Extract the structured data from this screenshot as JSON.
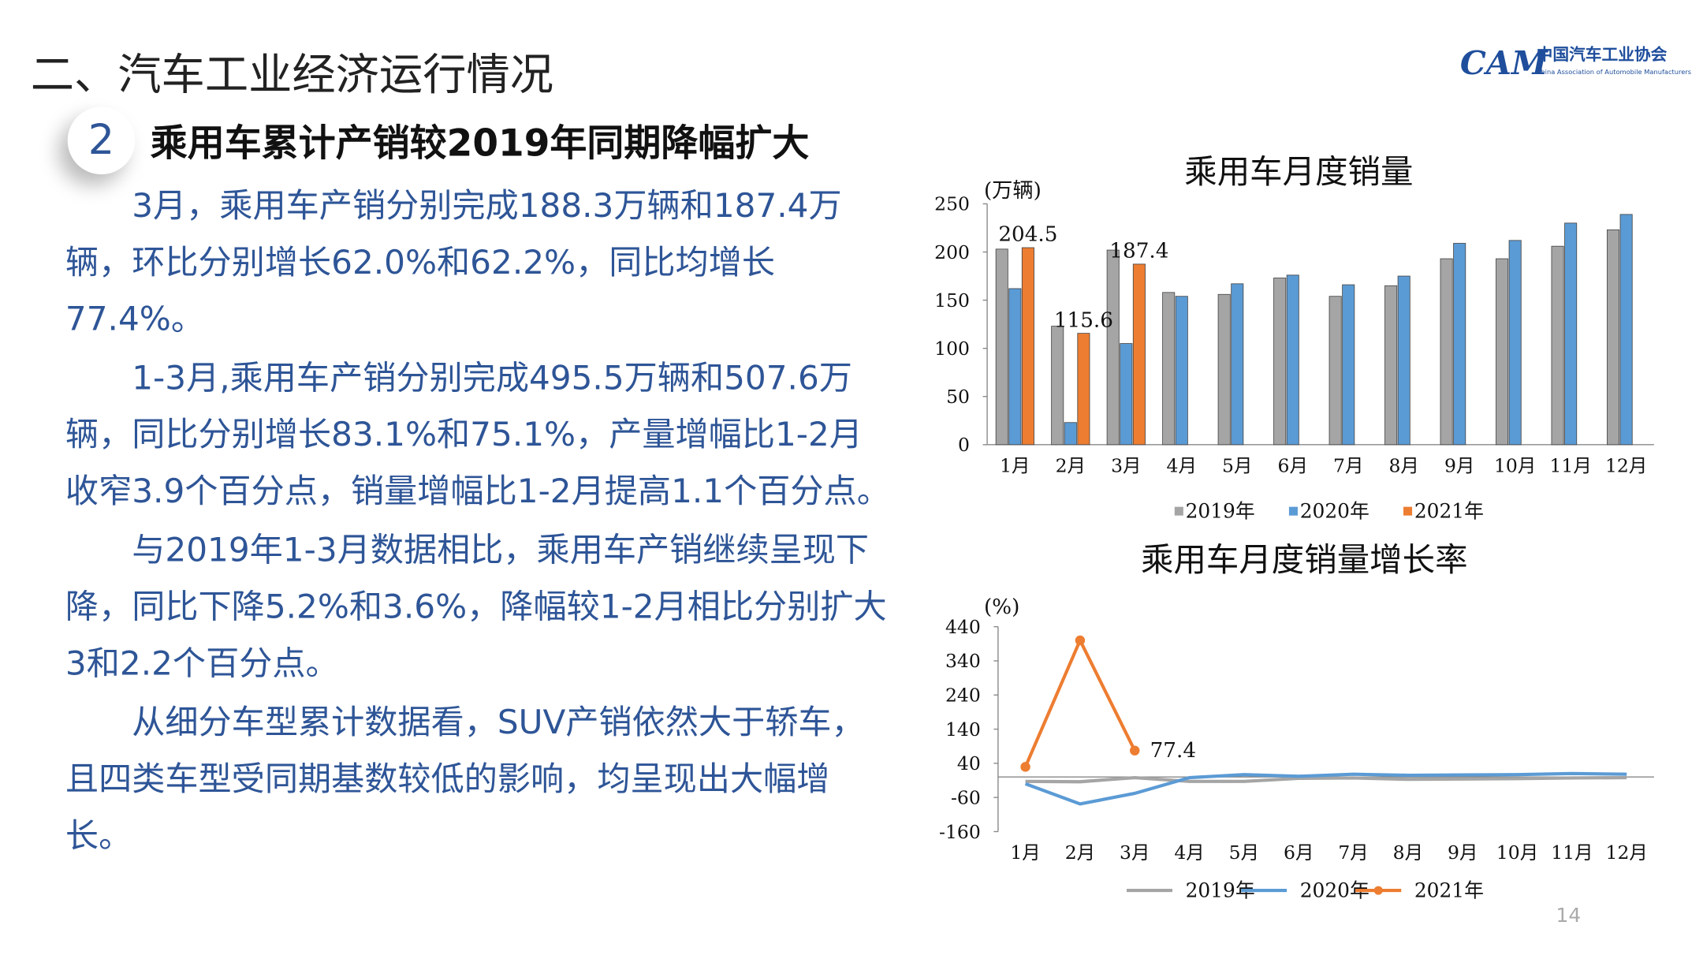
{
  "header": {
    "title": "二、汽车工业经济运行情况",
    "logo_cn": "中国汽车工业协会",
    "logo_en": "China Association of Automobile Manufacturers",
    "logo_mark": "CAM"
  },
  "section": {
    "number": "2",
    "title": "乘用车累计产销较2019年同期降幅扩大"
  },
  "paragraphs": [
    "3月，乘用车产销分别完成188.3万辆和187.4万辆，环比分别增长62.0%和62.2%，同比均增长77.4%。",
    "1-3月,乘用车产销分别完成495.5万辆和507.6万辆，同比分别增长83.1%和75.1%，产量增幅比1-2月收窄3.9个百分点，销量增幅比1-2月提高1.1个百分点。",
    "与2019年1-3月数据相比，乘用车产销继续呈现下降，同比下降5.2%和3.6%，降幅较1-2月相比分别扩大3和2.2个百分点。",
    "从细分车型累计数据看，SUV产销依然大于轿车，且四类车型受同期基数较低的影响，均呈现出大幅增长。"
  ],
  "page_number": "14",
  "chart_data": [
    {
      "type": "bar",
      "title": "乘用车月度销量",
      "y_label": "(万辆)",
      "categories": [
        "1月",
        "2月",
        "3月",
        "4月",
        "5月",
        "6月",
        "7月",
        "8月",
        "9月",
        "10月",
        "11月",
        "12月"
      ],
      "series": [
        {
          "name": "2019年",
          "color": "#a5a5a5",
          "values": [
            203,
            123,
            202,
            158,
            156,
            173,
            154,
            165,
            193,
            193,
            206,
            223
          ]
        },
        {
          "name": "2020年",
          "color": "#5b9bd5",
          "values": [
            162,
            23,
            105,
            154,
            167,
            176,
            166,
            175,
            209,
            212,
            230,
            239
          ]
        },
        {
          "name": "2021年",
          "color": "#ed7d31",
          "values": [
            204.5,
            115.6,
            187.4,
            null,
            null,
            null,
            null,
            null,
            null,
            null,
            null,
            null
          ],
          "data_labels": true
        }
      ],
      "ylim": [
        0,
        250
      ],
      "yticks": [
        0,
        50,
        100,
        150,
        200,
        250
      ],
      "legend": "bottom"
    },
    {
      "type": "line",
      "title": "乘用车月度销量增长率",
      "y_label": "(%)",
      "categories": [
        "1月",
        "2月",
        "3月",
        "4月",
        "5月",
        "6月",
        "7月",
        "8月",
        "9月",
        "10月",
        "11月",
        "12月"
      ],
      "series": [
        {
          "name": "2019年",
          "color": "#a5a5a5",
          "values": [
            -13,
            -14,
            -2,
            -13,
            -13,
            -4,
            -3,
            -7,
            -6,
            -5,
            -3,
            -2
          ]
        },
        {
          "name": "2020年",
          "color": "#5b9bd5",
          "values": [
            -20,
            -79,
            -48,
            -2,
            7,
            2,
            8,
            5,
            6,
            7,
            10,
            8
          ]
        },
        {
          "name": "2021年",
          "color": "#ed7d31",
          "values": [
            29.6,
            400,
            77.4,
            null,
            null,
            null,
            null,
            null,
            null,
            null,
            null,
            null
          ],
          "markers": true,
          "label_last": true
        }
      ],
      "ylim": [
        -160,
        440
      ],
      "yticks": [
        -160,
        -60,
        40,
        140,
        240,
        340,
        440
      ],
      "legend": "bottom"
    }
  ]
}
